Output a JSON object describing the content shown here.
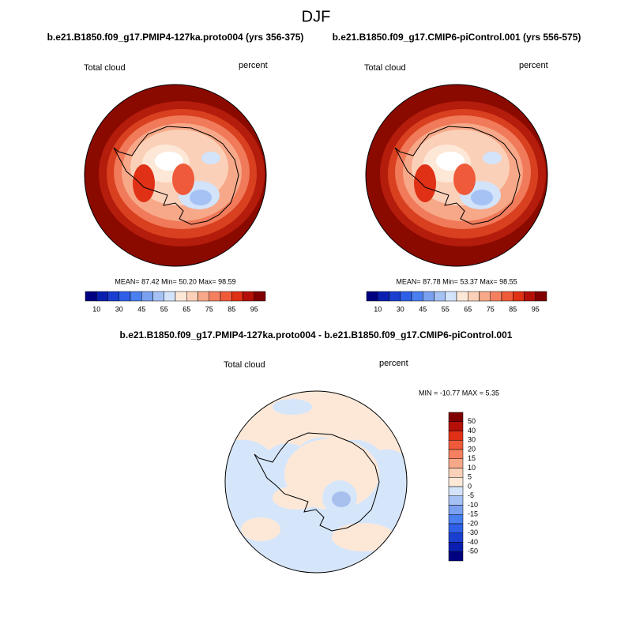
{
  "title": "DJF",
  "panels": [
    {
      "title": "b.e21.B1850.f09_g17.PMIP4-127ka.proto004 (yrs 356-375)",
      "label_left": "Total cloud",
      "label_right": "percent",
      "stats": "MEAN=  87.42  Min=  50.20  Max=  98.59"
    },
    {
      "title": "b.e21.B1850.f09_g17.CMIP6-piControl.001 (yrs 556-575)",
      "label_left": "Total cloud",
      "label_right": "percent",
      "stats": "MEAN=  87.78  Min=  53.37  Max=  98.55"
    }
  ],
  "colorbar_labels": [
    "10",
    "30",
    "45",
    "55",
    "65",
    "75",
    "85",
    "95"
  ],
  "difference": {
    "title": "b.e21.B1850.f09_g17.PMIP4-127ka.proto004 - b.e21.B1850.f09_g17.CMIP6-piControl.001",
    "label_left": "Total cloud",
    "label_right": "percent",
    "stats": "MIN = -10.77 MAX =   5.35",
    "colorbar_labels": [
      "50",
      "40",
      "30",
      "20",
      "15",
      "10",
      "5",
      "0",
      "-5",
      "-10",
      "-15",
      "-20",
      "-30",
      "-40",
      "-50"
    ]
  }
}
